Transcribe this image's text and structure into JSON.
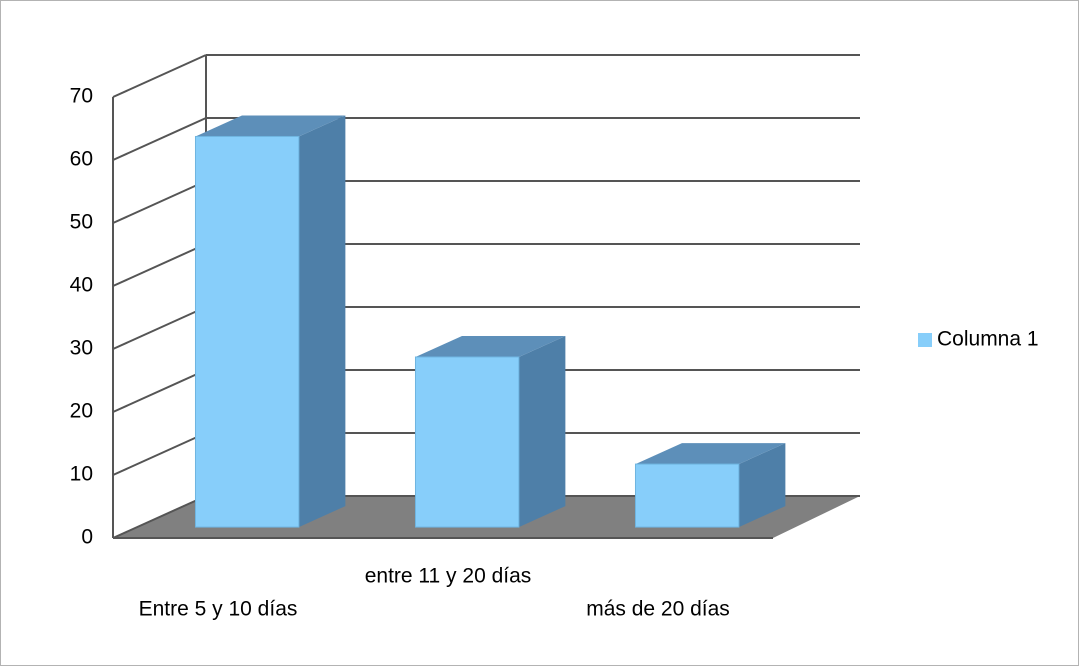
{
  "chart_data": {
    "type": "bar",
    "categories": [
      "Entre 5 y 10 días",
      "entre 11 y 20 días",
      "más de 20 días"
    ],
    "series": [
      {
        "name": "Columna 1",
        "color": "#87cefa",
        "values": [
          62,
          27,
          10
        ]
      }
    ],
    "ylim": [
      0,
      70
    ],
    "yticks": [
      0,
      10,
      20,
      30,
      40,
      50,
      60,
      70
    ],
    "grid": true,
    "legend": "right"
  }
}
